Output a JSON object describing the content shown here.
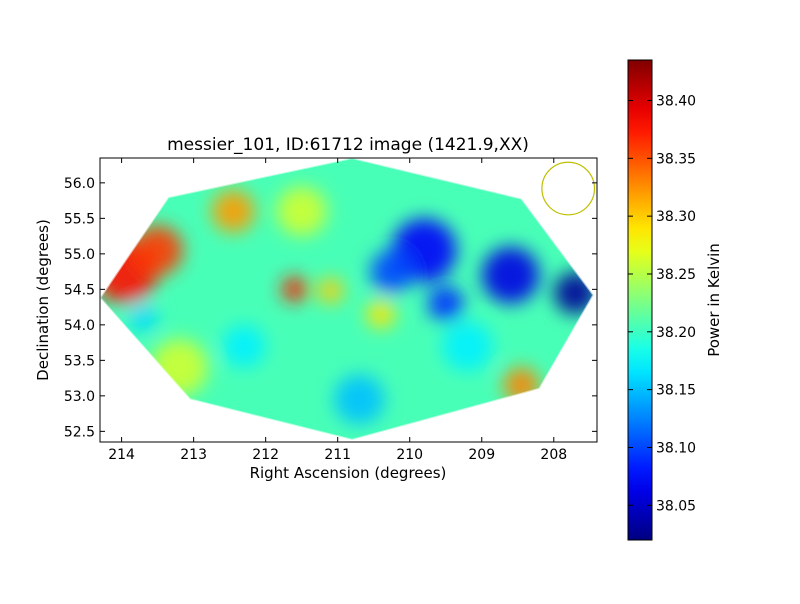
{
  "chart_data": {
    "type": "heatmap",
    "title": "messier_101, ID:61712 image (1421.9,XX)",
    "xlabel": "Right Ascension (degrees)",
    "ylabel": "Declination (degrees)",
    "xlim": [
      214.3,
      207.4
    ],
    "ylim": [
      52.35,
      56.35
    ],
    "x_inverted": true,
    "xticks": [
      214,
      213,
      212,
      211,
      210,
      209,
      208
    ],
    "yticks": [
      52.5,
      53.0,
      53.5,
      54.0,
      54.5,
      55.0,
      55.5,
      56.0
    ],
    "colorbar": {
      "label": "Power in Kelvin",
      "range": [
        38.02,
        38.435
      ],
      "ticks": [
        "38.05",
        "38.10",
        "38.15",
        "38.20",
        "38.25",
        "38.30",
        "38.35",
        "38.40"
      ],
      "colormap": "jet"
    },
    "footprint_vertices_deg": [
      [
        214.3,
        54.38
      ],
      [
        213.35,
        55.8
      ],
      [
        210.8,
        56.35
      ],
      [
        208.45,
        55.78
      ],
      [
        207.45,
        54.42
      ],
      [
        208.2,
        53.1
      ],
      [
        210.8,
        52.38
      ],
      [
        213.05,
        52.95
      ]
    ],
    "base_value": 38.205,
    "features": [
      {
        "ra": 213.95,
        "dec": 54.75,
        "value": 38.38,
        "radius": 0.45
      },
      {
        "ra": 213.5,
        "dec": 55.05,
        "value": 38.36,
        "radius": 0.35
      },
      {
        "ra": 212.45,
        "dec": 55.6,
        "value": 38.32,
        "radius": 0.3
      },
      {
        "ra": 211.6,
        "dec": 54.5,
        "value": 38.37,
        "radius": 0.18
      },
      {
        "ra": 211.1,
        "dec": 54.48,
        "value": 38.3,
        "radius": 0.18
      },
      {
        "ra": 210.4,
        "dec": 54.15,
        "value": 38.29,
        "radius": 0.2
      },
      {
        "ra": 208.45,
        "dec": 53.15,
        "value": 38.33,
        "radius": 0.25
      },
      {
        "ra": 213.2,
        "dec": 53.4,
        "value": 38.26,
        "radius": 0.4
      },
      {
        "ra": 211.5,
        "dec": 55.6,
        "value": 38.26,
        "radius": 0.35
      },
      {
        "ra": 209.8,
        "dec": 55.05,
        "value": 38.07,
        "radius": 0.45
      },
      {
        "ra": 210.25,
        "dec": 54.75,
        "value": 38.1,
        "radius": 0.3
      },
      {
        "ra": 208.6,
        "dec": 54.7,
        "value": 38.06,
        "radius": 0.4
      },
      {
        "ra": 207.7,
        "dec": 54.45,
        "value": 38.03,
        "radius": 0.3
      },
      {
        "ra": 209.5,
        "dec": 54.3,
        "value": 38.09,
        "radius": 0.25
      },
      {
        "ra": 210.7,
        "dec": 52.95,
        "value": 38.15,
        "radius": 0.35
      },
      {
        "ra": 212.3,
        "dec": 53.7,
        "value": 38.17,
        "radius": 0.3
      },
      {
        "ra": 209.2,
        "dec": 53.7,
        "value": 38.17,
        "radius": 0.35
      },
      {
        "ra": 213.7,
        "dec": 54.1,
        "value": 38.16,
        "radius": 0.2
      }
    ],
    "beam_circle": {
      "ra": 207.8,
      "dec": 55.92,
      "radius_deg": 0.37,
      "color": "#bfbf00"
    },
    "grid": false,
    "legend": "none"
  }
}
